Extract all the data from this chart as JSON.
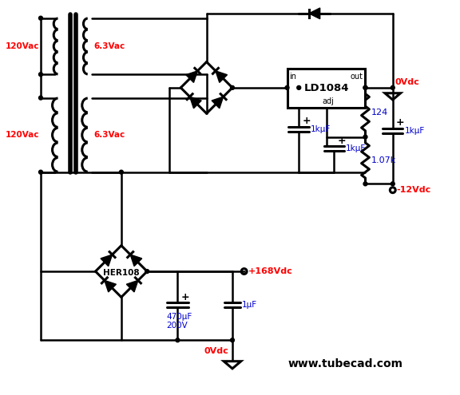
{
  "background_color": "#ffffff",
  "website": "www.tubecad.com",
  "labels": {
    "120vac_top": "120Vac",
    "120vac_bot": "120Vac",
    "6v3_top": "6.3Vac",
    "6v3_bot": "6.3Vac",
    "0vdc_top": "0Vdc",
    "minus12vdc": "-12Vdc",
    "plus168vdc": "+168Vdc",
    "0vdc_bot": "0Vdc",
    "ld1084": "LD1084",
    "in_label": "in",
    "out_label": "out",
    "adj_label": "adj",
    "r124": "124",
    "r107k": "1.07k",
    "c1kuf_left": "1kμF",
    "c1kuf_mid": "1kμF",
    "c1kuf_right": "1kμF",
    "c470uf": "470μF",
    "c200v": "200V",
    "c1uf": "1μF",
    "her108": "HER108"
  },
  "colors": {
    "red": "#ff0000",
    "blue": "#0000cd",
    "black": "#000000"
  }
}
